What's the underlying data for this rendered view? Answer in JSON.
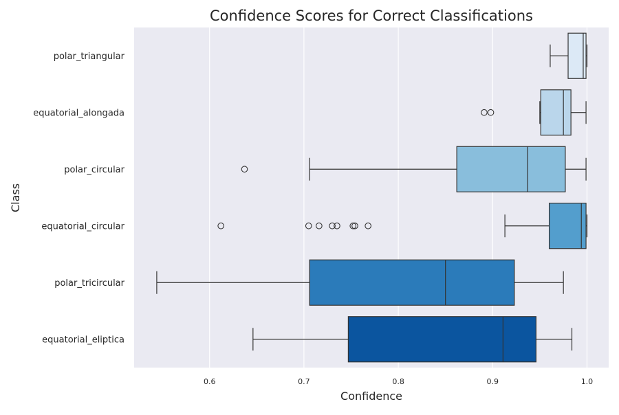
{
  "chart_data": {
    "type": "boxplot",
    "orientation": "horizontal",
    "title": "Confidence Scores for Correct Classifications",
    "xlabel": "Confidence",
    "ylabel": "Class",
    "xlim": [
      0.52,
      1.023
    ],
    "xticks": [
      0.6,
      0.7,
      0.8,
      0.9,
      1.0
    ],
    "xtick_labels": [
      "0.6",
      "0.7",
      "0.8",
      "0.9",
      "1.0"
    ],
    "grid": true,
    "background": "#eaeaf2",
    "categories": [
      "polar_triangular",
      "equatorial_alongada",
      "polar_circular",
      "equatorial_circular",
      "polar_tricircular",
      "equatorial_eliptica"
    ],
    "boxes": [
      {
        "whisker_low": 0.961,
        "q1": 0.98,
        "median": 0.996,
        "q3": 0.999,
        "whisker_high": 1.0,
        "outliers": [],
        "color": "#dce9f6"
      },
      {
        "whisker_low": 0.95,
        "q1": 0.951,
        "median": 0.975,
        "q3": 0.983,
        "whisker_high": 0.999,
        "outliers": [
          0.891,
          0.898
        ],
        "color": "#bad6eb"
      },
      {
        "whisker_low": 0.706,
        "q1": 0.862,
        "median": 0.937,
        "q3": 0.977,
        "whisker_high": 0.999,
        "outliers": [
          0.637
        ],
        "color": "#89bedc"
      },
      {
        "whisker_low": 0.913,
        "q1": 0.96,
        "median": 0.994,
        "q3": 0.999,
        "whisker_high": 1.0,
        "outliers": [
          0.612,
          0.705,
          0.716,
          0.73,
          0.735,
          0.752,
          0.754,
          0.768
        ],
        "color": "#539ecd"
      },
      {
        "whisker_low": 0.544,
        "q1": 0.706,
        "median": 0.85,
        "q3": 0.923,
        "whisker_high": 0.975,
        "outliers": [],
        "color": "#2b7bba"
      },
      {
        "whisker_low": 0.646,
        "q1": 0.747,
        "median": 0.911,
        "q3": 0.946,
        "whisker_high": 0.984,
        "outliers": [],
        "color": "#0b559f"
      }
    ]
  }
}
